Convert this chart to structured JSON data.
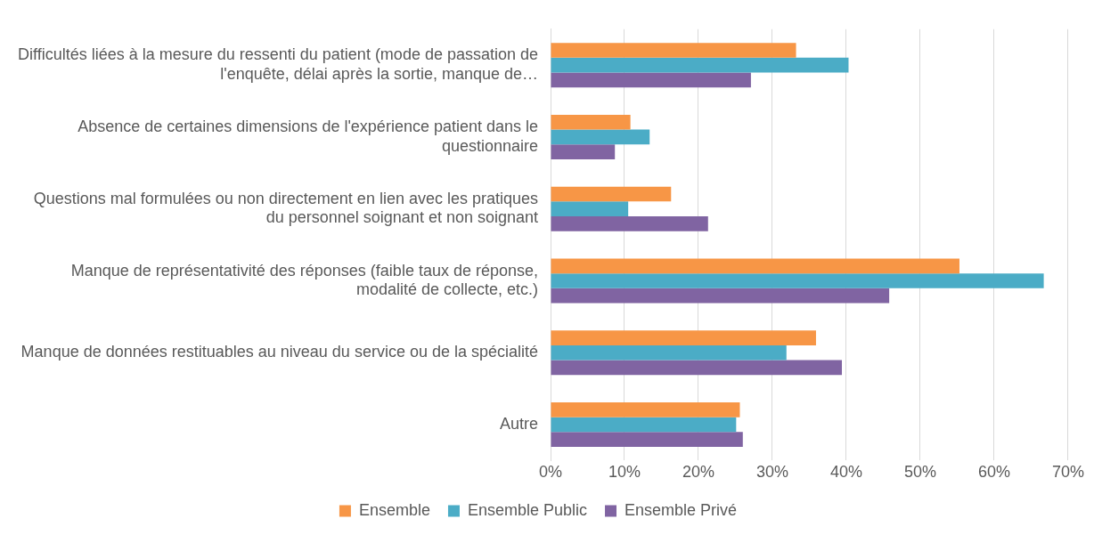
{
  "chart_data": {
    "type": "bar",
    "orientation": "horizontal",
    "categories": [
      "Difficultés liées à la mesure du ressenti du patient (mode de passation de l'enquête, délai après la sortie, manque de…",
      "Absence de certaines dimensions de l'expérience patient dans le questionnaire",
      "Questions mal formulées ou non directement en lien avec les pratiques du personnel soignant et non soignant",
      "Manque de représentativité des réponses (faible taux de réponse, modalité de collecte, etc.)",
      "Manque de données restituables au niveau du service ou de la spécialité",
      "Autre"
    ],
    "series": [
      {
        "name": "Ensemble",
        "color": "#f79646",
        "values": [
          33.2,
          10.8,
          16.3,
          55.3,
          35.9,
          25.6
        ]
      },
      {
        "name": "Ensemble Public",
        "color": "#4bacc6",
        "values": [
          40.3,
          13.4,
          10.5,
          66.7,
          31.9,
          25.1
        ]
      },
      {
        "name": "Ensemble Privé",
        "color": "#8064a2",
        "values": [
          27.1,
          8.7,
          21.3,
          45.8,
          39.4,
          26.0
        ]
      }
    ],
    "xlim": [
      0,
      70
    ],
    "xticks": [
      {
        "value": 0,
        "label": "0%"
      },
      {
        "value": 10,
        "label": "10%"
      },
      {
        "value": 20,
        "label": "20%"
      },
      {
        "value": 30,
        "label": "30%"
      },
      {
        "value": 40,
        "label": "40%"
      },
      {
        "value": 50,
        "label": "50%"
      },
      {
        "value": 60,
        "label": "60%"
      },
      {
        "value": 70,
        "label": "70%"
      }
    ],
    "grid": "x",
    "legend": "bottom"
  }
}
